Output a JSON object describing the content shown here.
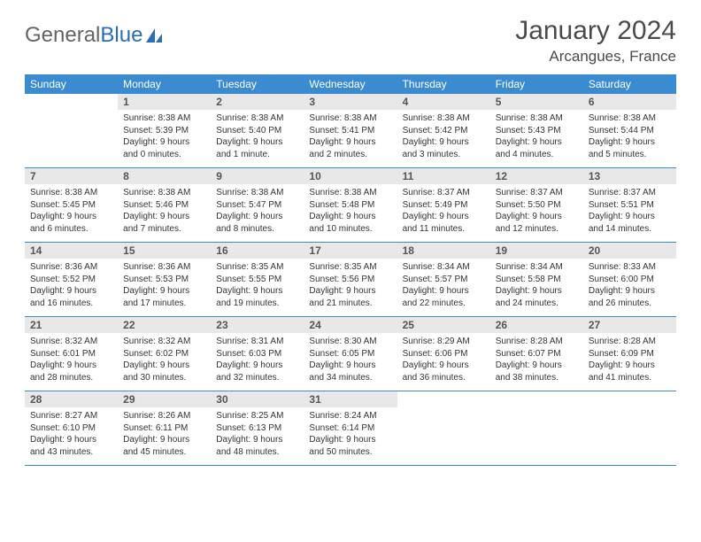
{
  "logo": {
    "text1": "General",
    "text2": "Blue"
  },
  "title": "January 2024",
  "location": "Arcangues, France",
  "colors": {
    "header_bg": "#3b8bd0",
    "header_fg": "#ffffff",
    "daynum_bg": "#e8e8e8",
    "border": "#3b8bd0",
    "logo_gray": "#646464",
    "logo_blue": "#2a6fb5",
    "page_bg": "#ffffff",
    "text": "#333333"
  },
  "typography": {
    "title_fontsize": 30,
    "location_fontsize": 17,
    "header_cell_fontsize": 12,
    "daynum_fontsize": 12,
    "body_fontsize": 10
  },
  "weekday_headers": [
    "Sunday",
    "Monday",
    "Tuesday",
    "Wednesday",
    "Thursday",
    "Friday",
    "Saturday"
  ],
  "weeks": [
    [
      {
        "day": "",
        "sunrise": "",
        "sunset": "",
        "daylight": ""
      },
      {
        "day": "1",
        "sunrise": "Sunrise: 8:38 AM",
        "sunset": "Sunset: 5:39 PM",
        "daylight": "Daylight: 9 hours and 0 minutes."
      },
      {
        "day": "2",
        "sunrise": "Sunrise: 8:38 AM",
        "sunset": "Sunset: 5:40 PM",
        "daylight": "Daylight: 9 hours and 1 minute."
      },
      {
        "day": "3",
        "sunrise": "Sunrise: 8:38 AM",
        "sunset": "Sunset: 5:41 PM",
        "daylight": "Daylight: 9 hours and 2 minutes."
      },
      {
        "day": "4",
        "sunrise": "Sunrise: 8:38 AM",
        "sunset": "Sunset: 5:42 PM",
        "daylight": "Daylight: 9 hours and 3 minutes."
      },
      {
        "day": "5",
        "sunrise": "Sunrise: 8:38 AM",
        "sunset": "Sunset: 5:43 PM",
        "daylight": "Daylight: 9 hours and 4 minutes."
      },
      {
        "day": "6",
        "sunrise": "Sunrise: 8:38 AM",
        "sunset": "Sunset: 5:44 PM",
        "daylight": "Daylight: 9 hours and 5 minutes."
      }
    ],
    [
      {
        "day": "7",
        "sunrise": "Sunrise: 8:38 AM",
        "sunset": "Sunset: 5:45 PM",
        "daylight": "Daylight: 9 hours and 6 minutes."
      },
      {
        "day": "8",
        "sunrise": "Sunrise: 8:38 AM",
        "sunset": "Sunset: 5:46 PM",
        "daylight": "Daylight: 9 hours and 7 minutes."
      },
      {
        "day": "9",
        "sunrise": "Sunrise: 8:38 AM",
        "sunset": "Sunset: 5:47 PM",
        "daylight": "Daylight: 9 hours and 8 minutes."
      },
      {
        "day": "10",
        "sunrise": "Sunrise: 8:38 AM",
        "sunset": "Sunset: 5:48 PM",
        "daylight": "Daylight: 9 hours and 10 minutes."
      },
      {
        "day": "11",
        "sunrise": "Sunrise: 8:37 AM",
        "sunset": "Sunset: 5:49 PM",
        "daylight": "Daylight: 9 hours and 11 minutes."
      },
      {
        "day": "12",
        "sunrise": "Sunrise: 8:37 AM",
        "sunset": "Sunset: 5:50 PM",
        "daylight": "Daylight: 9 hours and 12 minutes."
      },
      {
        "day": "13",
        "sunrise": "Sunrise: 8:37 AM",
        "sunset": "Sunset: 5:51 PM",
        "daylight": "Daylight: 9 hours and 14 minutes."
      }
    ],
    [
      {
        "day": "14",
        "sunrise": "Sunrise: 8:36 AM",
        "sunset": "Sunset: 5:52 PM",
        "daylight": "Daylight: 9 hours and 16 minutes."
      },
      {
        "day": "15",
        "sunrise": "Sunrise: 8:36 AM",
        "sunset": "Sunset: 5:53 PM",
        "daylight": "Daylight: 9 hours and 17 minutes."
      },
      {
        "day": "16",
        "sunrise": "Sunrise: 8:35 AM",
        "sunset": "Sunset: 5:55 PM",
        "daylight": "Daylight: 9 hours and 19 minutes."
      },
      {
        "day": "17",
        "sunrise": "Sunrise: 8:35 AM",
        "sunset": "Sunset: 5:56 PM",
        "daylight": "Daylight: 9 hours and 21 minutes."
      },
      {
        "day": "18",
        "sunrise": "Sunrise: 8:34 AM",
        "sunset": "Sunset: 5:57 PM",
        "daylight": "Daylight: 9 hours and 22 minutes."
      },
      {
        "day": "19",
        "sunrise": "Sunrise: 8:34 AM",
        "sunset": "Sunset: 5:58 PM",
        "daylight": "Daylight: 9 hours and 24 minutes."
      },
      {
        "day": "20",
        "sunrise": "Sunrise: 8:33 AM",
        "sunset": "Sunset: 6:00 PM",
        "daylight": "Daylight: 9 hours and 26 minutes."
      }
    ],
    [
      {
        "day": "21",
        "sunrise": "Sunrise: 8:32 AM",
        "sunset": "Sunset: 6:01 PM",
        "daylight": "Daylight: 9 hours and 28 minutes."
      },
      {
        "day": "22",
        "sunrise": "Sunrise: 8:32 AM",
        "sunset": "Sunset: 6:02 PM",
        "daylight": "Daylight: 9 hours and 30 minutes."
      },
      {
        "day": "23",
        "sunrise": "Sunrise: 8:31 AM",
        "sunset": "Sunset: 6:03 PM",
        "daylight": "Daylight: 9 hours and 32 minutes."
      },
      {
        "day": "24",
        "sunrise": "Sunrise: 8:30 AM",
        "sunset": "Sunset: 6:05 PM",
        "daylight": "Daylight: 9 hours and 34 minutes."
      },
      {
        "day": "25",
        "sunrise": "Sunrise: 8:29 AM",
        "sunset": "Sunset: 6:06 PM",
        "daylight": "Daylight: 9 hours and 36 minutes."
      },
      {
        "day": "26",
        "sunrise": "Sunrise: 8:28 AM",
        "sunset": "Sunset: 6:07 PM",
        "daylight": "Daylight: 9 hours and 38 minutes."
      },
      {
        "day": "27",
        "sunrise": "Sunrise: 8:28 AM",
        "sunset": "Sunset: 6:09 PM",
        "daylight": "Daylight: 9 hours and 41 minutes."
      }
    ],
    [
      {
        "day": "28",
        "sunrise": "Sunrise: 8:27 AM",
        "sunset": "Sunset: 6:10 PM",
        "daylight": "Daylight: 9 hours and 43 minutes."
      },
      {
        "day": "29",
        "sunrise": "Sunrise: 8:26 AM",
        "sunset": "Sunset: 6:11 PM",
        "daylight": "Daylight: 9 hours and 45 minutes."
      },
      {
        "day": "30",
        "sunrise": "Sunrise: 8:25 AM",
        "sunset": "Sunset: 6:13 PM",
        "daylight": "Daylight: 9 hours and 48 minutes."
      },
      {
        "day": "31",
        "sunrise": "Sunrise: 8:24 AM",
        "sunset": "Sunset: 6:14 PM",
        "daylight": "Daylight: 9 hours and 50 minutes."
      },
      {
        "day": "",
        "sunrise": "",
        "sunset": "",
        "daylight": ""
      },
      {
        "day": "",
        "sunrise": "",
        "sunset": "",
        "daylight": ""
      },
      {
        "day": "",
        "sunrise": "",
        "sunset": "",
        "daylight": ""
      }
    ]
  ]
}
